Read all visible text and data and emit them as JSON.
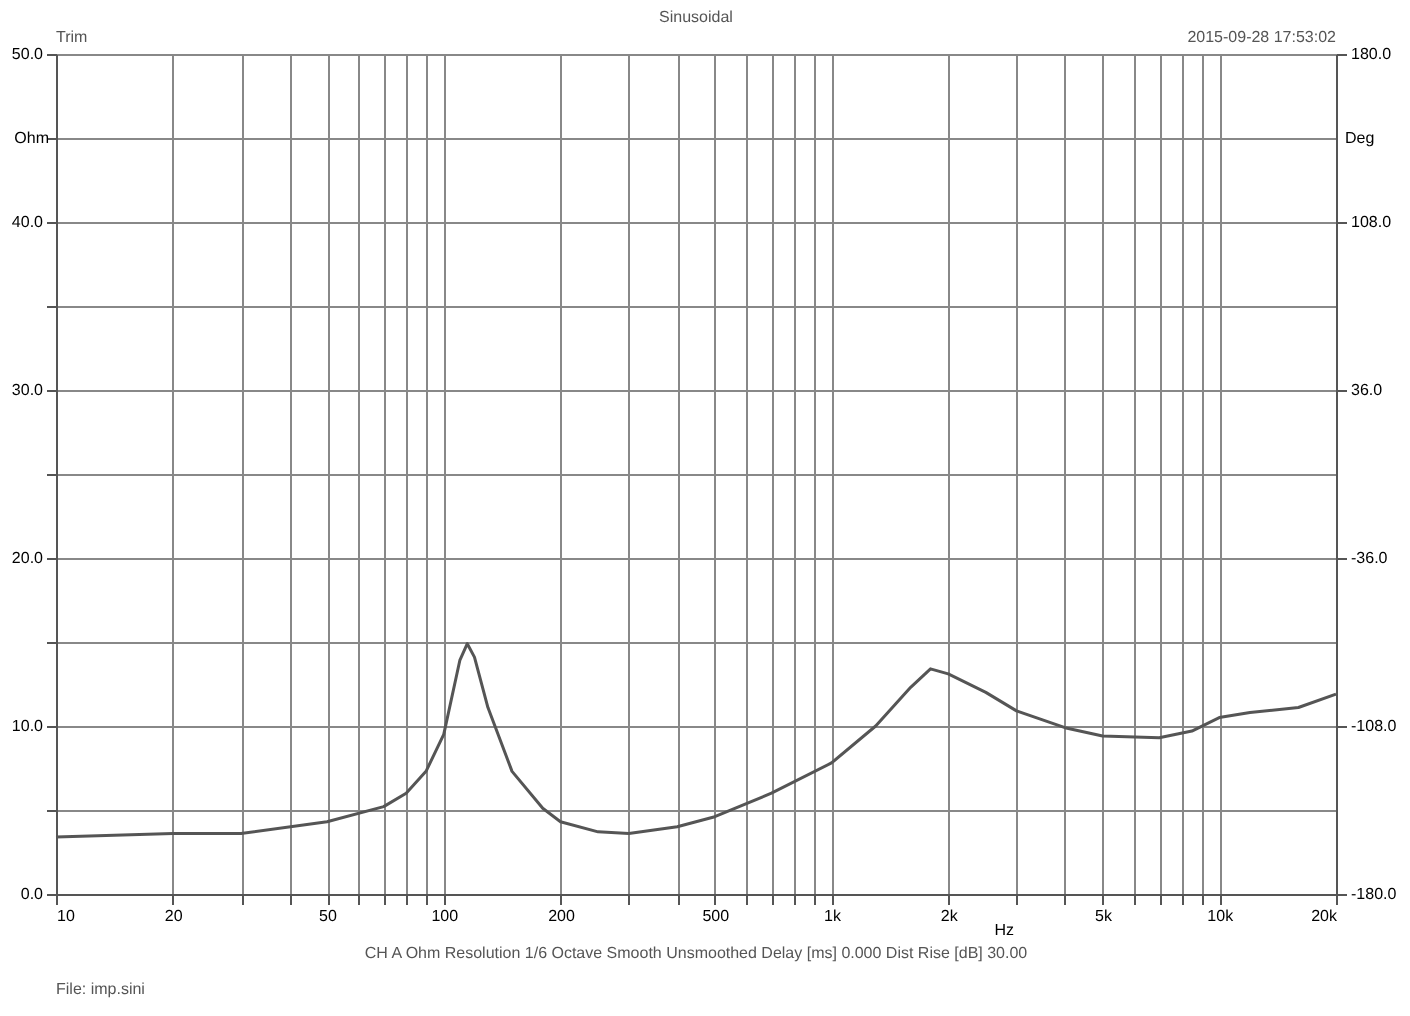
{
  "chart_data": {
    "type": "line",
    "title": "Sinusoidal",
    "xlabel": "Hz",
    "ylabel": "Ohm",
    "y2label": "Deg",
    "annotations": [
      "Trim",
      "2015-09-28 17:53:02",
      "CH A  Ohm  Resolution 1/6 Octave  Smooth Unsmoothed  Delay [ms] 0.000  Dist Rise [dB] 30.00",
      "File: imp.sini"
    ],
    "log": "x",
    "grid": true,
    "legend": false,
    "marker": "none",
    "line_style": "solid",
    "xlim": [
      10,
      20000
    ],
    "xticks": [
      10,
      20,
      {
        "value": 30,
        "label": null
      },
      {
        "value": 40,
        "label": null
      },
      50,
      {
        "value": 60,
        "label": null
      },
      {
        "value": 70,
        "label": null
      },
      {
        "value": 80,
        "label": null
      },
      {
        "value": 90,
        "label": null
      },
      100,
      200,
      {
        "value": 300,
        "label": null
      },
      {
        "value": 400,
        "label": null
      },
      500,
      {
        "value": 600,
        "label": null
      },
      {
        "value": 700,
        "label": null
      },
      {
        "value": 800,
        "label": null
      },
      {
        "value": 900,
        "label": null
      },
      {
        "value": 1000,
        "label": "1k"
      },
      {
        "value": 2000,
        "label": "2k"
      },
      {
        "value": 3000,
        "label": null
      },
      {
        "value": 4000,
        "label": null
      },
      {
        "value": 5000,
        "label": "5k"
      },
      {
        "value": 6000,
        "label": null
      },
      {
        "value": 7000,
        "label": null
      },
      {
        "value": 8000,
        "label": null
      },
      {
        "value": 9000,
        "label": null
      },
      {
        "value": 10000,
        "label": "10k"
      },
      {
        "value": 20000,
        "label": "20k"
      }
    ],
    "ylim": [
      0,
      50
    ],
    "yticks": [
      {
        "value": 0,
        "label": "0.0"
      },
      {
        "value": 5,
        "label": null
      },
      {
        "value": 10,
        "label": "10.0"
      },
      {
        "value": 15,
        "label": null
      },
      {
        "value": 20,
        "label": "20.0"
      },
      {
        "value": 25,
        "label": null
      },
      {
        "value": 30,
        "label": "30.0"
      },
      {
        "value": 35,
        "label": null
      },
      {
        "value": 40,
        "label": "40.0"
      },
      {
        "value": 45,
        "label": null
      },
      {
        "value": 50,
        "label": "50.0"
      }
    ],
    "y2lim": [
      -180,
      180
    ],
    "y2ticks": [
      {
        "value": -180,
        "label": "-180.0"
      },
      {
        "value": -108,
        "label": "-108.0"
      },
      {
        "value": -36,
        "label": "-36.0"
      },
      {
        "value": 36,
        "label": "36.0"
      },
      {
        "value": 108,
        "label": "108.0"
      },
      {
        "value": 180,
        "label": "180.0"
      }
    ],
    "series": [
      {
        "color": "#555555",
        "x": [
          10,
          20,
          30,
          50,
          70,
          80,
          90,
          100,
          110,
          115,
          120,
          130,
          150,
          180,
          200,
          250,
          300,
          400,
          500,
          700,
          1000,
          1300,
          1600,
          1800,
          2000,
          2500,
          3000,
          4000,
          5000,
          7000,
          8500,
          10000,
          12000,
          16000,
          20000
        ],
        "values": [
          3.4,
          3.6,
          3.6,
          4.3,
          5.2,
          6.0,
          7.3,
          9.5,
          13.9,
          14.9,
          14.1,
          11.1,
          7.3,
          5.1,
          4.3,
          3.7,
          3.6,
          4.0,
          4.6,
          6.0,
          7.8,
          10.0,
          12.3,
          13.4,
          13.1,
          12.0,
          10.9,
          9.9,
          9.4,
          9.3,
          9.7,
          10.5,
          10.8,
          11.1,
          11.9
        ]
      }
    ]
  }
}
